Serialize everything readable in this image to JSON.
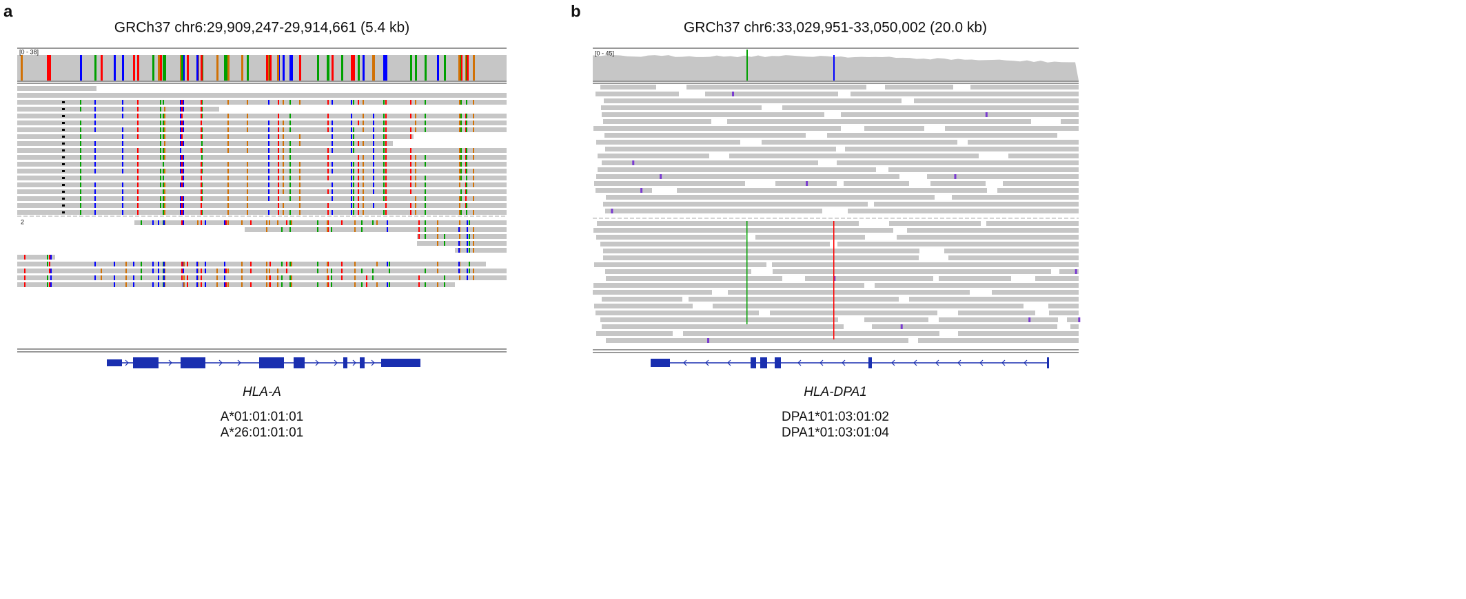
{
  "panels": [
    {
      "label": "a",
      "title": "GRCh37 chr6:29,909,247-29,914,661 (5.4 kb)",
      "coverage_range": "[0 - 38]",
      "group_label": "2",
      "gene": "HLA-A",
      "alleles": [
        "A*01:01:01:01",
        "A*26:01:01:01"
      ]
    },
    {
      "label": "b",
      "title": "GRCh37 chr6:33,029,951-33,050,002 (20.0 kb)",
      "coverage_range": "[0 - 45]",
      "gene": "HLA-DPA1",
      "alleles": [
        "DPA1*01:03:01:02",
        "DPA1*01:03:01:04"
      ]
    }
  ]
}
